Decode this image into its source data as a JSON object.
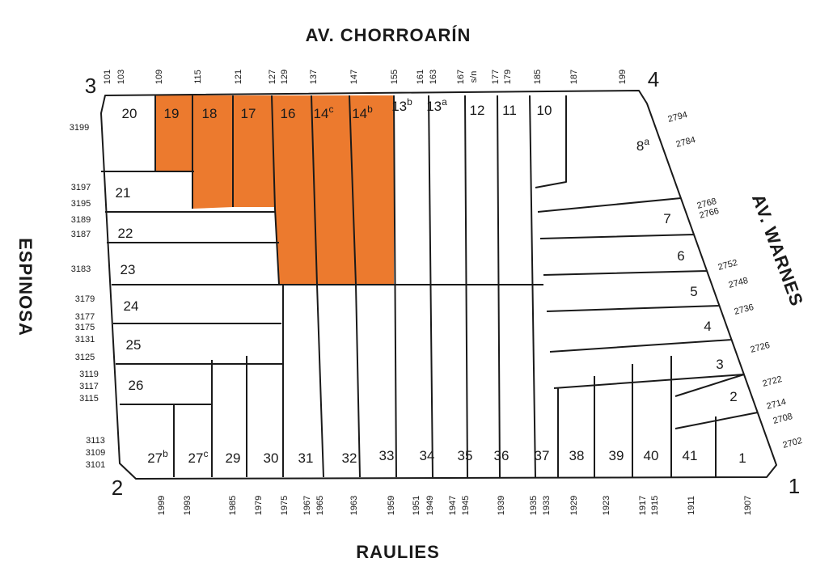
{
  "streets": {
    "top": "AV. CHORROARÍN",
    "left": "ESPINOSA",
    "right": "AV. WARNES",
    "bottom": "RAULIES"
  },
  "corners": {
    "top_left": "3",
    "top_right": "4",
    "bottom_left": "2",
    "bottom_right": "1"
  },
  "highlight_color": "#ec7a2e",
  "door_numbers": {
    "top": [
      "101",
      "103",
      "109",
      "115",
      "121",
      "127",
      "129",
      "137",
      "147",
      "155",
      "161",
      "163",
      "167",
      "s/n",
      "177",
      "179",
      "185",
      "187",
      "199"
    ],
    "left": [
      "3199",
      "3197",
      "3195",
      "3189",
      "3187",
      "3183",
      "3179",
      "3177",
      "3175",
      "3131",
      "3125",
      "3119",
      "3117",
      "3115",
      "3113",
      "3109",
      "3101"
    ],
    "right": [
      "2794",
      "2784",
      "2768",
      "2766",
      "2752",
      "2748",
      "2736",
      "2726",
      "2722",
      "2714",
      "2708",
      "2702"
    ],
    "bottom": [
      "1999",
      "1993",
      "1985",
      "1979",
      "1975",
      "1967",
      "1965",
      "1963",
      "1959",
      "1951",
      "1949",
      "1947",
      "1945",
      "1939",
      "1935",
      "1933",
      "1929",
      "1923",
      "1917",
      "1915",
      "1911",
      "1907"
    ]
  },
  "lots": [
    {
      "number": "20"
    },
    {
      "number": "19",
      "highlighted": true
    },
    {
      "number": "18",
      "highlighted": true
    },
    {
      "number": "17",
      "highlighted": true
    },
    {
      "number": "16",
      "highlighted": true
    },
    {
      "number": "14",
      "suffix": "c",
      "highlighted": true
    },
    {
      "number": "14",
      "suffix": "b",
      "highlighted": true
    },
    {
      "number": "13",
      "suffix": "b"
    },
    {
      "number": "13",
      "suffix": "a"
    },
    {
      "number": "12"
    },
    {
      "number": "11"
    },
    {
      "number": "10"
    },
    {
      "number": "8",
      "suffix": "a"
    },
    {
      "number": "7"
    },
    {
      "number": "6"
    },
    {
      "number": "5"
    },
    {
      "number": "4"
    },
    {
      "number": "3"
    },
    {
      "number": "2"
    },
    {
      "number": "1"
    },
    {
      "number": "41"
    },
    {
      "number": "40"
    },
    {
      "number": "39"
    },
    {
      "number": "38"
    },
    {
      "number": "37"
    },
    {
      "number": "36"
    },
    {
      "number": "35"
    },
    {
      "number": "34"
    },
    {
      "number": "33"
    },
    {
      "number": "32"
    },
    {
      "number": "31"
    },
    {
      "number": "30"
    },
    {
      "number": "29"
    },
    {
      "number": "27",
      "suffix": "c"
    },
    {
      "number": "27",
      "suffix": "b"
    },
    {
      "number": "26"
    },
    {
      "number": "25"
    },
    {
      "number": "24"
    },
    {
      "number": "23"
    },
    {
      "number": "22"
    },
    {
      "number": "21"
    }
  ]
}
